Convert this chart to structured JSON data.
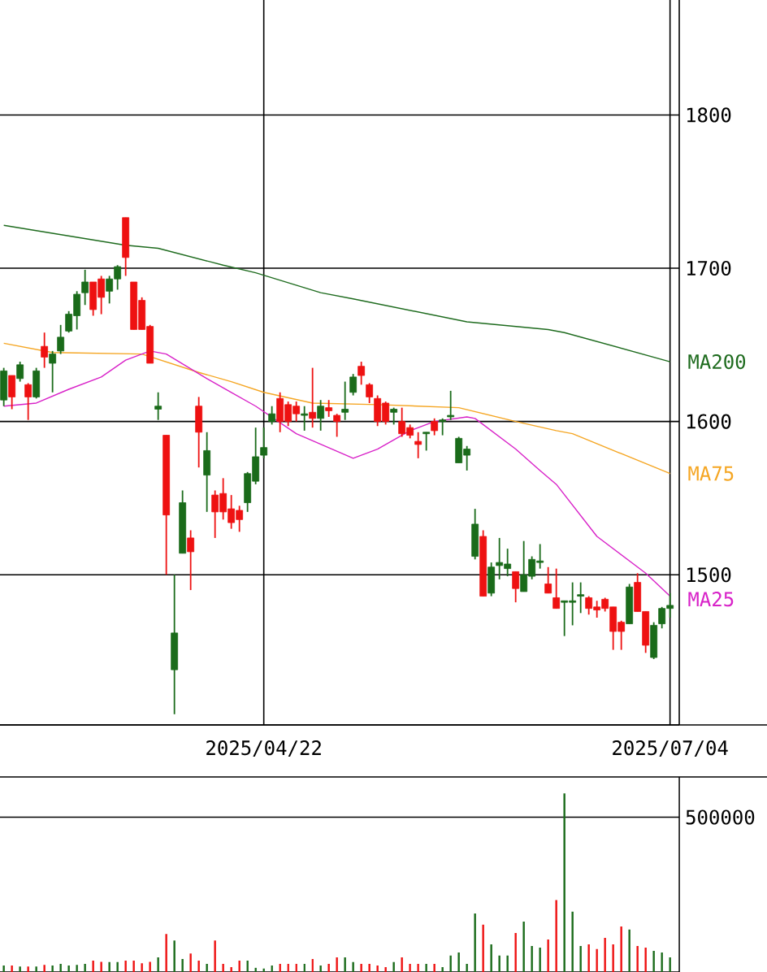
{
  "chart_data": [
    {
      "type": "candlestick",
      "categories": [
        null,
        null,
        null,
        null,
        null,
        null,
        null,
        null,
        null,
        null,
        null,
        null,
        null,
        null,
        null,
        null,
        null,
        null,
        null,
        null,
        null,
        null,
        null,
        null,
        null,
        null,
        null,
        null,
        null,
        null,
        null,
        null,
        "2025/04/22",
        null,
        null,
        null,
        null,
        null,
        null,
        null,
        null,
        null,
        null,
        null,
        null,
        null,
        null,
        null,
        null,
        null,
        null,
        null,
        null,
        null,
        null,
        null,
        null,
        null,
        null,
        null,
        null,
        null,
        null,
        null,
        null,
        null,
        null,
        null,
        null,
        null,
        null,
        null,
        null,
        null,
        null,
        null,
        null,
        null,
        null,
        null,
        null,
        null,
        "2025/07/04"
      ],
      "ohlc": [
        [
          1614,
          1635,
          1610,
          1633
        ],
        [
          1630,
          1630,
          1608,
          1616
        ],
        [
          1628,
          1639,
          1626,
          1637
        ],
        [
          1624,
          1625,
          1601,
          1616
        ],
        [
          1616,
          1635,
          1615,
          1633
        ],
        [
          1649,
          1658,
          1635,
          1642
        ],
        [
          1638,
          1646,
          1619,
          1644
        ],
        [
          1646,
          1663,
          1644,
          1655
        ],
        [
          1659,
          1672,
          1658,
          1670
        ],
        [
          1669,
          1685,
          1660,
          1683
        ],
        [
          1684,
          1699,
          1676,
          1691
        ],
        [
          1691,
          1691,
          1669,
          1673
        ],
        [
          1693,
          1695,
          1670,
          1681
        ],
        [
          1685,
          1695,
          1677,
          1693
        ],
        [
          1693,
          1702,
          1686,
          1701
        ],
        [
          1733,
          1733,
          1695,
          1707
        ],
        [
          1691,
          1691,
          1660,
          1660
        ],
        [
          1679,
          1681,
          1660,
          1660
        ],
        [
          1662,
          1663,
          1638,
          1638
        ],
        [
          1608,
          1619,
          1601,
          1610
        ],
        [
          1591,
          1591,
          1500,
          1539
        ],
        [
          1438,
          1500,
          1409,
          1462
        ],
        [
          1514,
          1555,
          1514,
          1547
        ],
        [
          1524,
          1529,
          1490,
          1515
        ],
        [
          1610,
          1616,
          1570,
          1593
        ],
        [
          1565,
          1593,
          1541,
          1581
        ],
        [
          1552,
          1555,
          1524,
          1541
        ],
        [
          1553,
          1563,
          1536,
          1541
        ],
        [
          1543,
          1552,
          1530,
          1534
        ],
        [
          1542,
          1545,
          1528,
          1536
        ],
        [
          1547,
          1567,
          1541,
          1566
        ],
        [
          1561,
          1596,
          1559,
          1577
        ],
        [
          1578,
          1596,
          1576,
          1583
        ],
        [
          1600,
          1610,
          1598,
          1605
        ],
        [
          1615,
          1619,
          1593,
          1600
        ],
        [
          1611,
          1613,
          1597,
          1600
        ],
        [
          1610,
          1613,
          1600,
          1605
        ],
        [
          1604,
          1610,
          1594,
          1605
        ],
        [
          1606,
          1635,
          1596,
          1602
        ],
        [
          1602,
          1614,
          1594,
          1610
        ],
        [
          1609,
          1614,
          1603,
          1607
        ],
        [
          1604,
          1605,
          1590,
          1600
        ],
        [
          1606,
          1626,
          1601,
          1608
        ],
        [
          1619,
          1631,
          1617,
          1629
        ],
        [
          1636,
          1639,
          1624,
          1630
        ],
        [
          1624,
          1625,
          1612,
          1616
        ],
        [
          1615,
          1617,
          1597,
          1600
        ],
        [
          1612,
          1613,
          1598,
          1600
        ],
        [
          1606,
          1609,
          1598,
          1608
        ],
        [
          1600,
          1609,
          1590,
          1592
        ],
        [
          1596,
          1598,
          1589,
          1591
        ],
        [
          1587,
          1593,
          1576,
          1585
        ],
        [
          1592,
          1593,
          1581,
          1593
        ],
        [
          1600,
          1602,
          1591,
          1594
        ],
        [
          1600,
          1602,
          1591,
          1601
        ],
        [
          1603,
          1620,
          1601,
          1604
        ],
        [
          1573,
          1590,
          1573,
          1589
        ],
        [
          1578,
          1584,
          1568,
          1582
        ],
        [
          1512,
          1543,
          1510,
          1533
        ],
        [
          1525,
          1529,
          1486,
          1486
        ],
        [
          1488,
          1508,
          1486,
          1505
        ],
        [
          1506,
          1524,
          1497,
          1508
        ],
        [
          1504,
          1517,
          1499,
          1507
        ],
        [
          1502,
          1502,
          1482,
          1491
        ],
        [
          1489,
          1522,
          1489,
          1500
        ],
        [
          1499,
          1512,
          1497,
          1510
        ],
        [
          1508,
          1520,
          1504,
          1509
        ],
        [
          1494,
          1505,
          1488,
          1488
        ],
        [
          1485,
          1504,
          1478,
          1478
        ],
        [
          1482,
          1483,
          1460,
          1483
        ],
        [
          1482,
          1495,
          1467,
          1483
        ],
        [
          1486,
          1495,
          1475,
          1487
        ],
        [
          1485,
          1486,
          1474,
          1478
        ],
        [
          1479,
          1483,
          1472,
          1477
        ],
        [
          1484,
          1485,
          1476,
          1478
        ],
        [
          1479,
          1479,
          1451,
          1463
        ],
        [
          1469,
          1470,
          1451,
          1463
        ],
        [
          1468,
          1494,
          1468,
          1492
        ],
        [
          1495,
          1501,
          1476,
          1476
        ],
        [
          1476,
          1476,
          1449,
          1454
        ],
        [
          1446,
          1469,
          1445,
          1467
        ],
        [
          1468,
          1479,
          1465,
          1478
        ],
        [
          1478,
          1488,
          1472,
          1480
        ]
      ],
      "series": [
        {
          "name": "MA200",
          "type": "line",
          "color": "#1e6b1e",
          "values": [
            1728,
            null,
            null,
            null,
            null,
            null,
            null,
            null,
            null,
            null,
            null,
            null,
            null,
            null,
            null,
            1715,
            null,
            null,
            null,
            1713,
            null,
            null,
            null,
            null,
            null,
            null,
            null,
            1702,
            null,
            null,
            null,
            1697,
            null,
            null,
            null,
            null,
            null,
            null,
            null,
            1684,
            null,
            null,
            null,
            1680,
            null,
            null,
            null,
            null,
            null,
            null,
            null,
            null,
            null,
            null,
            null,
            null,
            null,
            1665,
            null,
            null,
            null,
            null,
            null,
            null,
            null,
            null,
            null,
            1660,
            null,
            1658,
            null,
            null,
            null,
            null,
            null,
            null,
            null,
            null,
            null,
            null,
            null,
            null,
            1639
          ]
        },
        {
          "name": "MA75",
          "type": "line",
          "color": "#f5a623",
          "values": [
            1651,
            null,
            null,
            null,
            null,
            null,
            1645,
            null,
            null,
            null,
            null,
            null,
            null,
            null,
            null,
            null,
            null,
            1644,
            null,
            null,
            null,
            null,
            null,
            null,
            1632,
            null,
            null,
            null,
            1626,
            null,
            null,
            null,
            1619,
            null,
            null,
            null,
            null,
            null,
            1612,
            null,
            null,
            null,
            null,
            null,
            null,
            null,
            1611,
            null,
            null,
            null,
            null,
            null,
            null,
            null,
            null,
            null,
            1609,
            null,
            null,
            null,
            null,
            null,
            null,
            1600,
            null,
            null,
            null,
            null,
            1594,
            null,
            1592,
            null,
            null,
            null,
            null,
            null,
            null,
            null,
            null,
            null,
            null,
            null,
            1566
          ]
        },
        {
          "name": "MA25",
          "type": "line",
          "color": "#d822c8",
          "values": [
            1610,
            null,
            null,
            null,
            1612,
            null,
            null,
            null,
            1621,
            null,
            null,
            null,
            1629,
            null,
            null,
            1640,
            null,
            null,
            1646,
            null,
            1644,
            null,
            null,
            null,
            null,
            1628,
            null,
            null,
            1619,
            null,
            null,
            1610,
            null,
            null,
            null,
            null,
            1592,
            null,
            null,
            null,
            null,
            null,
            null,
            1576,
            null,
            null,
            1582,
            null,
            null,
            null,
            1594,
            null,
            null,
            1600,
            null,
            null,
            null,
            1603,
            1602,
            null,
            null,
            null,
            null,
            1582,
            null,
            null,
            1568,
            null,
            1559,
            null,
            null,
            null,
            null,
            1525,
            null,
            null,
            null,
            null,
            null,
            1501,
            null,
            null,
            1486
          ]
        }
      ],
      "ylim": [
        1402,
        1875
      ],
      "yticks": [
        1500,
        1600,
        1700,
        1800
      ],
      "grid": true
    },
    {
      "type": "bar",
      "categories": [
        null,
        null,
        null,
        null,
        null,
        null,
        null,
        null,
        null,
        null,
        null,
        null,
        null,
        null,
        null,
        null,
        null,
        null,
        null,
        null,
        null,
        null,
        null,
        null,
        null,
        null,
        null,
        null,
        null,
        null,
        null,
        null,
        null,
        null,
        null,
        null,
        null,
        null,
        null,
        null,
        null,
        null,
        null,
        null,
        null,
        null,
        null,
        null,
        null,
        null,
        null,
        null,
        null,
        null,
        null,
        null,
        null,
        null,
        null,
        null,
        null,
        null,
        null,
        null,
        null,
        null,
        null,
        null,
        null,
        null,
        null,
        null,
        null,
        null,
        null,
        null,
        null,
        null,
        null,
        null,
        null,
        null,
        null
      ],
      "values": [
        21000,
        21000,
        18000,
        18000,
        18000,
        23000,
        21000,
        26000,
        21000,
        23000,
        26000,
        37000,
        33000,
        32000,
        32000,
        37000,
        37000,
        28000,
        33000,
        47000,
        123000,
        102000,
        42000,
        60000,
        37000,
        26000,
        102000,
        26000,
        16000,
        37000,
        37000,
        14000,
        11000,
        21000,
        26000,
        26000,
        26000,
        26000,
        42000,
        21000,
        26000,
        47000,
        47000,
        32000,
        26000,
        26000,
        21000,
        16000,
        32000,
        47000,
        26000,
        26000,
        26000,
        26000,
        16000,
        53000,
        63000,
        26000,
        189000,
        153000,
        89000,
        53000,
        53000,
        126000,
        163000,
        84000,
        79000,
        105000,
        232000,
        577000,
        195000,
        84000,
        89000,
        74000,
        110000,
        89000,
        147000,
        137000,
        84000,
        79000,
        68000,
        63000,
        47000
      ],
      "colors": [
        "#1a6b1a",
        "#ee1111",
        "#1a6b1a",
        "#ee1111",
        "#1a6b1a",
        "#ee1111",
        "#1a6b1a",
        "#1a6b1a",
        "#1a6b1a",
        "#1a6b1a",
        "#1a6b1a",
        "#ee1111",
        "#ee1111",
        "#1a6b1a",
        "#1a6b1a",
        "#ee1111",
        "#ee1111",
        "#ee1111",
        "#ee1111",
        "#1a6b1a",
        "#ee1111",
        "#1a6b1a",
        "#1a6b1a",
        "#ee1111",
        "#ee1111",
        "#1a6b1a",
        "#ee1111",
        "#ee1111",
        "#ee1111",
        "#ee1111",
        "#1a6b1a",
        "#1a6b1a",
        "#1a6b1a",
        "#1a6b1a",
        "#ee1111",
        "#ee1111",
        "#ee1111",
        "#1a6b1a",
        "#ee1111",
        "#1a6b1a",
        "#ee1111",
        "#ee1111",
        "#1a6b1a",
        "#1a6b1a",
        "#ee1111",
        "#ee1111",
        "#ee1111",
        "#ee1111",
        "#1a6b1a",
        "#ee1111",
        "#ee1111",
        "#ee1111",
        "#1a6b1a",
        "#ee1111",
        "#1a6b1a",
        "#1a6b1a",
        "#1a6b1a",
        "#1a6b1a",
        "#1a6b1a",
        "#ee1111",
        "#1a6b1a",
        "#1a6b1a",
        "#1a6b1a",
        "#ee1111",
        "#1a6b1a",
        "#1a6b1a",
        "#1a6b1a",
        "#ee1111",
        "#ee1111",
        "#1a6b1a",
        "#1a6b1a",
        "#1a6b1a",
        "#ee1111",
        "#ee1111",
        "#ee1111",
        "#ee1111",
        "#ee1111",
        "#1a6b1a",
        "#ee1111",
        "#ee1111",
        "#1a6b1a",
        "#1a6b1a",
        "#1a6b1a"
      ],
      "ylim": [
        0,
        630000
      ],
      "yticks": [
        500000
      ],
      "grid": "y",
      "tick_labels": "y"
    }
  ]
}
